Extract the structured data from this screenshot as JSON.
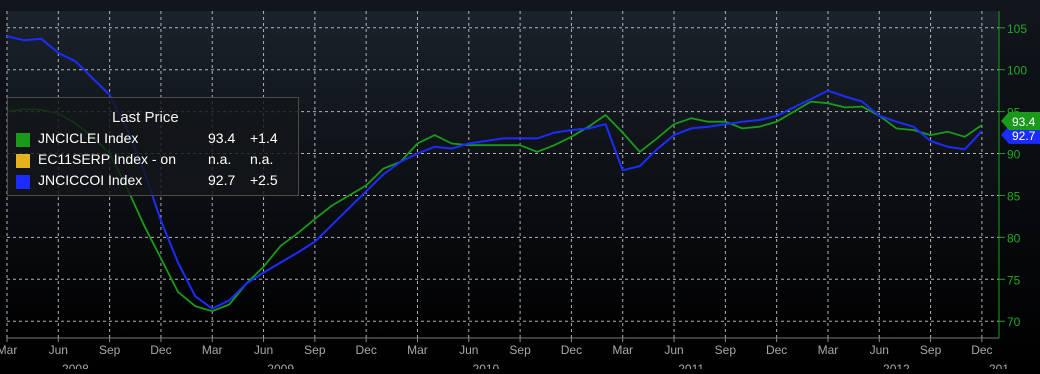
{
  "chart_data": {
    "type": "line",
    "title": "",
    "xlabel": "",
    "ylabel": "",
    "ylim": [
      68,
      107
    ],
    "grid": true,
    "legend_placement": "top-left",
    "legend_title": "Last Price",
    "y_ticks": [
      "105",
      "100",
      "95",
      "90",
      "85",
      "80",
      "75",
      "70"
    ],
    "x_ticks": [
      "Mar",
      "Jun",
      "Sep",
      "Dec",
      "Mar",
      "Jun",
      "Sep",
      "Dec",
      "Mar",
      "Jun",
      "Sep",
      "Dec",
      "Mar",
      "Jun",
      "Sep",
      "Dec",
      "Mar",
      "Jun",
      "Sep",
      "Dec"
    ],
    "x_years": [
      "2008",
      "2009",
      "2010",
      "2011",
      "2012",
      "201"
    ],
    "x_start": "2008-03",
    "x_end": "2013-01",
    "series": [
      {
        "name": "JNCICLEI Index",
        "color": "#1a9a1a",
        "last": "93.4",
        "change": "+1.4",
        "points": [
          [
            "2008-03",
            95.0
          ],
          [
            "2008-04",
            95.3
          ],
          [
            "2008-05",
            95.2
          ],
          [
            "2008-06",
            94.8
          ],
          [
            "2008-07",
            93.6
          ],
          [
            "2008-08",
            92.0
          ],
          [
            "2008-09",
            90.0
          ],
          [
            "2008-10",
            86.0
          ],
          [
            "2008-11",
            81.5
          ],
          [
            "2008-12",
            77.5
          ],
          [
            "2009-01",
            73.5
          ],
          [
            "2009-02",
            71.8
          ],
          [
            "2009-03",
            71.2
          ],
          [
            "2009-04",
            72.0
          ],
          [
            "2009-05",
            74.5
          ],
          [
            "2009-06",
            76.5
          ],
          [
            "2009-07",
            79.0
          ],
          [
            "2009-08",
            80.5
          ],
          [
            "2009-09",
            82.2
          ],
          [
            "2009-10",
            83.8
          ],
          [
            "2009-11",
            85.0
          ],
          [
            "2009-12",
            86.2
          ],
          [
            "2010-01",
            88.2
          ],
          [
            "2010-02",
            89.0
          ],
          [
            "2010-03",
            91.2
          ],
          [
            "2010-04",
            92.2
          ],
          [
            "2010-05",
            91.2
          ],
          [
            "2010-06",
            91.0
          ],
          [
            "2010-07",
            91.0
          ],
          [
            "2010-08",
            91.0
          ],
          [
            "2010-09",
            91.0
          ],
          [
            "2010-10",
            90.2
          ],
          [
            "2010-11",
            91.0
          ],
          [
            "2010-12",
            92.0
          ],
          [
            "2011-01",
            93.2
          ],
          [
            "2011-02",
            94.6
          ],
          [
            "2011-03",
            92.5
          ],
          [
            "2011-04",
            90.2
          ],
          [
            "2011-05",
            91.8
          ],
          [
            "2011-06",
            93.5
          ],
          [
            "2011-07",
            94.2
          ],
          [
            "2011-08",
            93.8
          ],
          [
            "2011-09",
            93.8
          ],
          [
            "2011-10",
            93.0
          ],
          [
            "2011-11",
            93.2
          ],
          [
            "2011-12",
            93.8
          ],
          [
            "2012-01",
            95.0
          ],
          [
            "2012-02",
            96.2
          ],
          [
            "2012-03",
            96.0
          ],
          [
            "2012-04",
            95.5
          ],
          [
            "2012-05",
            95.6
          ],
          [
            "2012-06",
            94.5
          ],
          [
            "2012-07",
            93.0
          ],
          [
            "2012-08",
            92.8
          ],
          [
            "2012-09",
            92.2
          ],
          [
            "2012-10",
            92.6
          ],
          [
            "2012-11",
            92.0
          ],
          [
            "2012-12",
            93.4
          ]
        ]
      },
      {
        "name": "EC11SERP Index - on",
        "color": "#e3b21c",
        "last": "n.a.",
        "change": "n.a.",
        "points": []
      },
      {
        "name": "JNCICCOI Index",
        "color": "#1c2cff",
        "last": "92.7",
        "change": "+2.5",
        "points": [
          [
            "2008-03",
            104.0
          ],
          [
            "2008-04",
            103.5
          ],
          [
            "2008-05",
            103.7
          ],
          [
            "2008-06",
            102.0
          ],
          [
            "2008-07",
            101.0
          ],
          [
            "2008-08",
            99.0
          ],
          [
            "2008-09",
            97.0
          ],
          [
            "2008-10",
            93.0
          ],
          [
            "2008-11",
            88.0
          ],
          [
            "2008-12",
            82.0
          ],
          [
            "2009-01",
            77.0
          ],
          [
            "2009-02",
            73.0
          ],
          [
            "2009-03",
            71.5
          ],
          [
            "2009-04",
            72.5
          ],
          [
            "2009-05",
            74.5
          ],
          [
            "2009-06",
            75.8
          ],
          [
            "2009-07",
            77.0
          ],
          [
            "2009-08",
            78.2
          ],
          [
            "2009-09",
            79.5
          ],
          [
            "2009-10",
            81.5
          ],
          [
            "2009-11",
            83.5
          ],
          [
            "2009-12",
            85.5
          ],
          [
            "2010-01",
            87.5
          ],
          [
            "2010-02",
            89.0
          ],
          [
            "2010-03",
            90.0
          ],
          [
            "2010-04",
            90.8
          ],
          [
            "2010-05",
            90.6
          ],
          [
            "2010-06",
            91.2
          ],
          [
            "2010-07",
            91.5
          ],
          [
            "2010-08",
            91.8
          ],
          [
            "2010-09",
            91.8
          ],
          [
            "2010-10",
            91.8
          ],
          [
            "2010-11",
            92.5
          ],
          [
            "2010-12",
            92.8
          ],
          [
            "2011-01",
            93.0
          ],
          [
            "2011-02",
            93.5
          ],
          [
            "2011-03",
            88.0
          ],
          [
            "2011-04",
            88.5
          ],
          [
            "2011-05",
            90.5
          ],
          [
            "2011-06",
            92.2
          ],
          [
            "2011-07",
            93.0
          ],
          [
            "2011-08",
            93.2
          ],
          [
            "2011-09",
            93.5
          ],
          [
            "2011-10",
            93.8
          ],
          [
            "2011-11",
            94.0
          ],
          [
            "2011-12",
            94.5
          ],
          [
            "2012-01",
            95.5
          ],
          [
            "2012-02",
            96.5
          ],
          [
            "2012-03",
            97.5
          ],
          [
            "2012-04",
            96.8
          ],
          [
            "2012-05",
            96.2
          ],
          [
            "2012-06",
            94.5
          ],
          [
            "2012-07",
            93.8
          ],
          [
            "2012-08",
            93.2
          ],
          [
            "2012-09",
            91.5
          ],
          [
            "2012-10",
            90.8
          ],
          [
            "2012-11",
            90.5
          ],
          [
            "2012-12",
            92.7
          ]
        ]
      }
    ]
  }
}
